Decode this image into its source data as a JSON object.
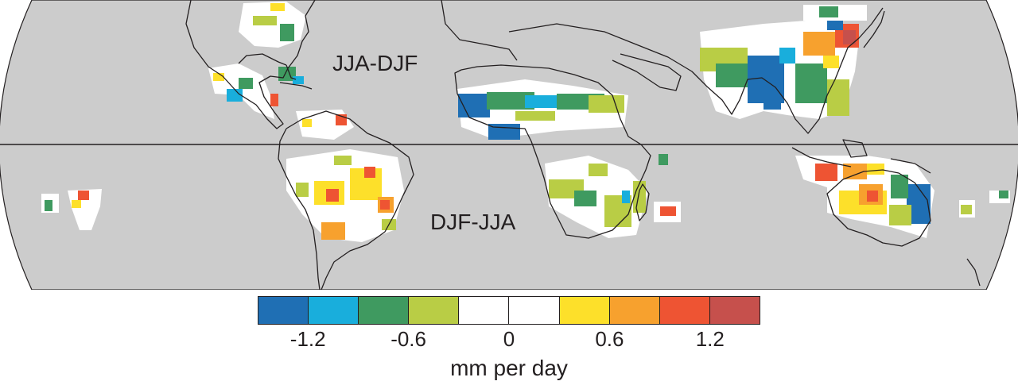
{
  "map": {
    "ocean_color": "#cccccc",
    "land_color": "#cccccc",
    "outline_color": "#231f20",
    "labels": {
      "north": "JJA-DJF",
      "south": "DJF-JJA"
    }
  },
  "colorbar": {
    "colors": [
      "#1f6fb4",
      "#19aedc",
      "#3f9a60",
      "#b9cd45",
      "#ffffff",
      "#ffffff",
      "#fde02a",
      "#f7a12e",
      "#ee5433",
      "#c6504c"
    ],
    "ticks": [
      {
        "label": "-1.2",
        "value": -1.2
      },
      {
        "label": "-0.6",
        "value": -0.6
      },
      {
        "label": "0",
        "value": 0
      },
      {
        "label": "0.6",
        "value": 0.6
      },
      {
        "label": "1.2",
        "value": 1.2
      }
    ],
    "range": [
      -1.5,
      1.5
    ],
    "unit": "mm per day"
  }
}
